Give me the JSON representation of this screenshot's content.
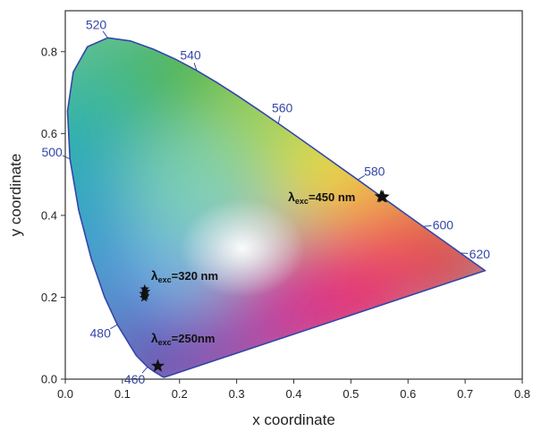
{
  "chart_data": {
    "type": "scatter",
    "xlabel": "x coordinate",
    "ylabel": "y coordinate",
    "xlim": [
      0.0,
      0.8
    ],
    "ylim": [
      0.0,
      0.9
    ],
    "x_ticks": [
      "0.0",
      "0.1",
      "0.2",
      "0.3",
      "0.4",
      "0.5",
      "0.6",
      "0.7",
      "0.8"
    ],
    "y_ticks": [
      "0.0",
      "0.2",
      "0.4",
      "0.6",
      "0.8"
    ],
    "grid": false,
    "colors": {
      "locus_line": "#3446a8",
      "wavelength_text": "#3446a8",
      "marker": "#111111"
    },
    "wavelength_labels": [
      {
        "text": "460",
        "x": 0.144,
        "y": 0.03
      },
      {
        "text": "480",
        "x": 0.091,
        "y": 0.133
      },
      {
        "text": "500",
        "x": 0.008,
        "y": 0.538
      },
      {
        "text": "520",
        "x": 0.074,
        "y": 0.834
      },
      {
        "text": "540",
        "x": 0.23,
        "y": 0.754
      },
      {
        "text": "560",
        "x": 0.373,
        "y": 0.624
      },
      {
        "text": "580",
        "x": 0.512,
        "y": 0.487
      },
      {
        "text": "600",
        "x": 0.627,
        "y": 0.373
      },
      {
        "text": "620",
        "x": 0.691,
        "y": 0.308
      }
    ],
    "series": [
      {
        "points": [
          {
            "x": 0.139,
            "y": 0.22
          },
          {
            "x": 0.141,
            "y": 0.214
          },
          {
            "x": 0.137,
            "y": 0.209
          },
          {
            "x": 0.14,
            "y": 0.203
          },
          {
            "x": 0.138,
            "y": 0.199
          }
        ]
      },
      {
        "points": [
          {
            "x": 0.162,
            "y": 0.032
          }
        ]
      },
      {
        "points": [
          {
            "x": 0.553,
            "y": 0.446
          },
          {
            "x": 0.556,
            "y": 0.445
          }
        ]
      }
    ],
    "annotations": [
      {
        "sub": "exc",
        "text": "=320 nm",
        "x": 0.15,
        "y": 0.243
      },
      {
        "sub": "exc",
        "text": "=250nm",
        "x": 0.15,
        "y": 0.09
      },
      {
        "sub": "exc",
        "text": "=450 nm",
        "x": 0.39,
        "y": 0.435
      }
    ]
  }
}
